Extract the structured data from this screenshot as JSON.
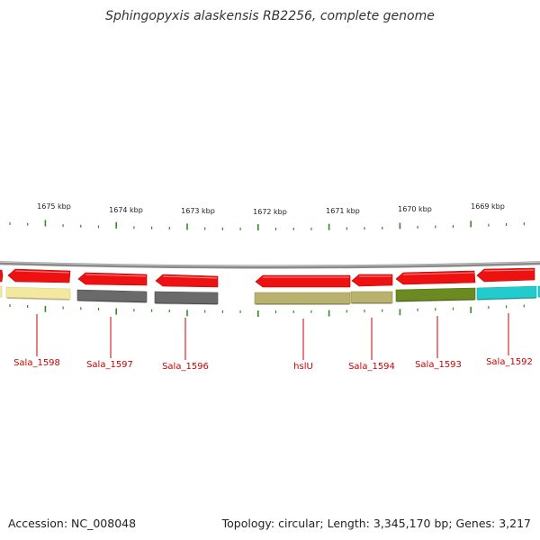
{
  "title": "Sphingopyxis alaskensis RB2256, complete genome",
  "footer": {
    "accession": "Accession: NC_008048",
    "summary": "Topology: circular; Length: 3,345,170 bp; Genes: 3,217"
  },
  "ruler": {
    "labels": [
      "1675 kbp",
      "1674 kbp",
      "1673 kbp",
      "1672 kbp",
      "1671 kbp",
      "1670 kbp",
      "1669 kbp"
    ]
  },
  "genes": [
    {
      "name": "Sala_1598",
      "fill": "#f2e8a0",
      "stroke": "#d9cf80"
    },
    {
      "name": "Sala_1597",
      "fill": "#6a6a6a",
      "stroke": "#4a4a4a"
    },
    {
      "name": "Sala_1596",
      "fill": "#6a6a6a",
      "stroke": "#4a4a4a"
    },
    {
      "name": "hslU",
      "fill": "#b9b26e",
      "stroke": "#98914f"
    },
    {
      "name": "Sala_1594",
      "fill": "#b9b26e",
      "stroke": "#98914f"
    },
    {
      "name": "Sala_1593",
      "fill": "#6b8a22",
      "stroke": "#4f6a14"
    },
    {
      "name": "Sala_1592",
      "fill": "#22cccc",
      "stroke": "#11a8a8"
    }
  ],
  "colors": {
    "arrow": "#ee1111",
    "tick": "#2e8b1e",
    "backbone": "#8a8a8a",
    "gene_label": "#cc0000",
    "leader": "#cc0000"
  }
}
